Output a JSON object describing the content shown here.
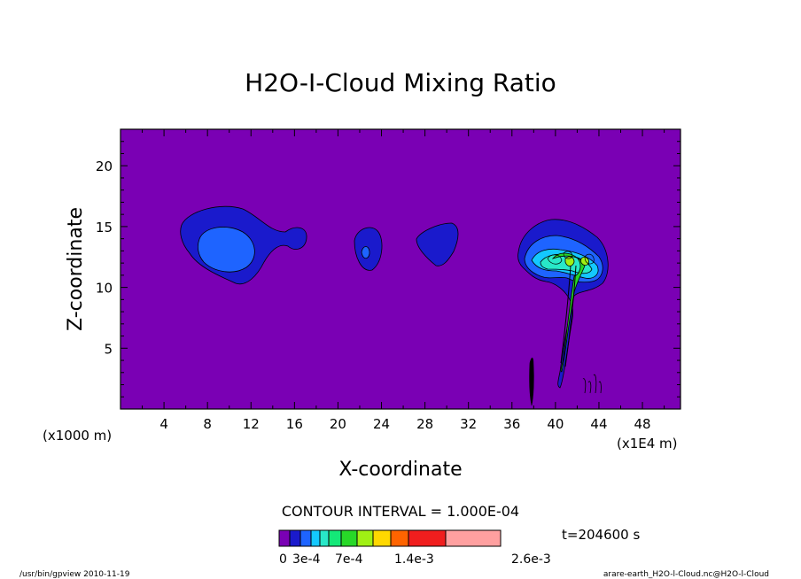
{
  "chart_data": {
    "type": "contour",
    "title": "H2O-I-Cloud Mixing Ratio",
    "xlabel": "X-coordinate",
    "ylabel": "Z-coordinate",
    "x_unit_left": "(x1000 m)",
    "x_unit_right": "(x1E4 m)",
    "xlim": [
      0,
      51.5
    ],
    "ylim": [
      0,
      23
    ],
    "x_ticks": [
      {
        "value": 4,
        "label": "4"
      },
      {
        "value": 8,
        "label": "8"
      },
      {
        "value": 12,
        "label": "12"
      },
      {
        "value": 16,
        "label": "16"
      },
      {
        "value": 20,
        "label": "20"
      },
      {
        "value": 24,
        "label": "24"
      },
      {
        "value": 28,
        "label": "28"
      },
      {
        "value": 32,
        "label": "32"
      },
      {
        "value": 36,
        "label": "36"
      },
      {
        "value": 40,
        "label": "40"
      },
      {
        "value": 44,
        "label": "44"
      },
      {
        "value": 48,
        "label": "48"
      }
    ],
    "y_ticks": [
      {
        "value": 5,
        "label": "5"
      },
      {
        "value": 10,
        "label": "10"
      },
      {
        "value": 15,
        "label": "15"
      },
      {
        "value": 20,
        "label": "20"
      }
    ],
    "background_color": "#7a00b4",
    "contour_interval_text": "CONTOUR INTERVAL = 1.000E-04",
    "time_text": "t=204600 s",
    "colorbar": {
      "colors": [
        "#7a00b4",
        "#1a1acc",
        "#1e64ff",
        "#14c8ff",
        "#28e8c8",
        "#14e878",
        "#28d828",
        "#a0f014",
        "#ffd800",
        "#ff6400",
        "#f01e1e",
        "#ffa0a0"
      ],
      "labels": [
        "0",
        "3e-4",
        "7e-4",
        "1.4e-3",
        "2.6e-3"
      ]
    },
    "features": [
      {
        "name": "cloud-x10",
        "x_center": 10,
        "z_center": 13.5,
        "max_level": 2
      },
      {
        "name": "cloud-x16",
        "x_center": 15.5,
        "z_center": 14.0,
        "max_level": 1
      },
      {
        "name": "cloud-x22",
        "x_center": 22.5,
        "z_center": 13.0,
        "max_level": 2
      },
      {
        "name": "cloud-x29",
        "x_center": 29,
        "z_center": 13.5,
        "max_level": 1
      },
      {
        "name": "cloud-x41",
        "x_center": 41,
        "z_center": 12.5,
        "max_level": 6
      }
    ]
  },
  "footer": {
    "left": "/usr/bin/gpview   2010-11-19",
    "right": "arare-earth_H2O-l-Cloud.nc@H2O-l-Cloud"
  }
}
